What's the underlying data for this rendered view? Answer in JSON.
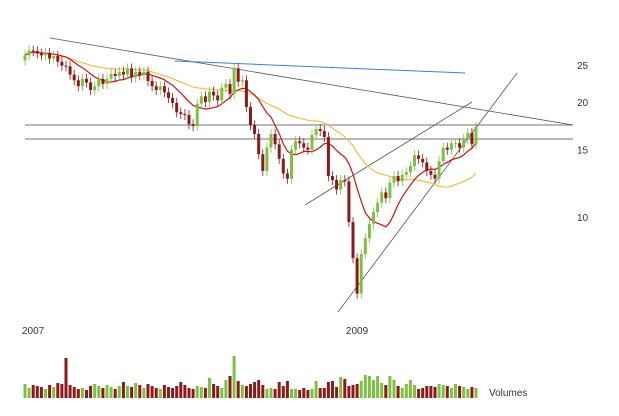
{
  "chart_data": {
    "type": "candlestick",
    "title": "",
    "xlabel": "",
    "ylabel": "",
    "y_scale": "log",
    "ylim": [
      5.3,
      29
    ],
    "y_ticks": [
      {
        "value": 25,
        "label": "25"
      },
      {
        "value": 20,
        "label": "20"
      },
      {
        "value": 15,
        "label": "15"
      },
      {
        "value": 10,
        "label": "10"
      }
    ],
    "x_labels": [
      {
        "week_index": 0,
        "label": "2007"
      },
      {
        "week_index": 79,
        "label": "2009"
      }
    ],
    "volume_label": "Volumes",
    "grid": false,
    "colors": {
      "up": "#7cc142",
      "down": "#8b1a1a",
      "ma_short": "#cc1111",
      "ma_long": "#e8c050",
      "trendline_blue": "#3a84c8",
      "trendlines": "#555555"
    },
    "closes": [
      26.5,
      27.3,
      27.2,
      26.8,
      26.5,
      26.9,
      26.0,
      26.4,
      25.5,
      24.9,
      24.8,
      23.6,
      22.8,
      22.0,
      23.0,
      22.5,
      21.5,
      22.0,
      23.0,
      22.3,
      23.0,
      23.7,
      23.4,
      24.0,
      23.6,
      24.5,
      23.2,
      24.0,
      23.5,
      24.0,
      22.7,
      22.0,
      21.5,
      22.0,
      21.2,
      20.5,
      19.9,
      18.8,
      18.6,
      18.5,
      17.5,
      17.3,
      19.8,
      20.7,
      20.0,
      21.3,
      20.8,
      20.2,
      21.8,
      22.3,
      21.0,
      24.5,
      22.6,
      22.8,
      19.4,
      17.4,
      16.5,
      14.6,
      13.2,
      15.2,
      16.5,
      15.5,
      14.2,
      13.0,
      12.6,
      15.0,
      15.8,
      15.6,
      15.2,
      15.0,
      16.4,
      17.0,
      16.8,
      16.2,
      12.8,
      12.5,
      11.8,
      12.5,
      12.4,
      9.7,
      7.8,
      6.3,
      8.0,
      8.8,
      9.6,
      10.3,
      10.9,
      11.6,
      11.2,
      12.3,
      12.8,
      12.4,
      12.9,
      13.1,
      13.6,
      14.5,
      14.2,
      13.9,
      13.2,
      12.9,
      12.6,
      14.0,
      15.2,
      15.0,
      15.6,
      15.6,
      15.2,
      16.0,
      16.6,
      15.5,
      17.2
    ],
    "volumes": [
      14,
      10,
      13,
      12,
      11,
      9,
      13,
      11,
      15,
      14,
      40,
      13,
      11,
      9,
      10,
      8,
      12,
      14,
      12,
      10,
      13,
      11,
      9,
      12,
      16,
      12,
      11,
      15,
      13,
      10,
      14,
      12,
      10,
      9,
      13,
      11,
      10,
      12,
      16,
      13,
      10,
      9,
      12,
      11,
      10,
      20,
      14,
      12,
      10,
      18,
      22,
      42,
      17,
      13,
      12,
      14,
      16,
      18,
      13,
      9,
      10,
      9,
      16,
      12,
      17,
      9,
      9,
      8,
      10,
      8,
      9,
      17,
      10,
      10,
      16,
      17,
      11,
      21,
      19,
      12,
      13,
      14,
      17,
      23,
      22,
      18,
      22,
      15,
      13,
      22,
      18,
      12,
      10,
      14,
      18,
      13,
      9,
      10,
      12,
      12,
      11,
      14,
      13,
      12,
      10,
      14,
      12,
      11,
      9,
      11,
      10
    ]
  }
}
